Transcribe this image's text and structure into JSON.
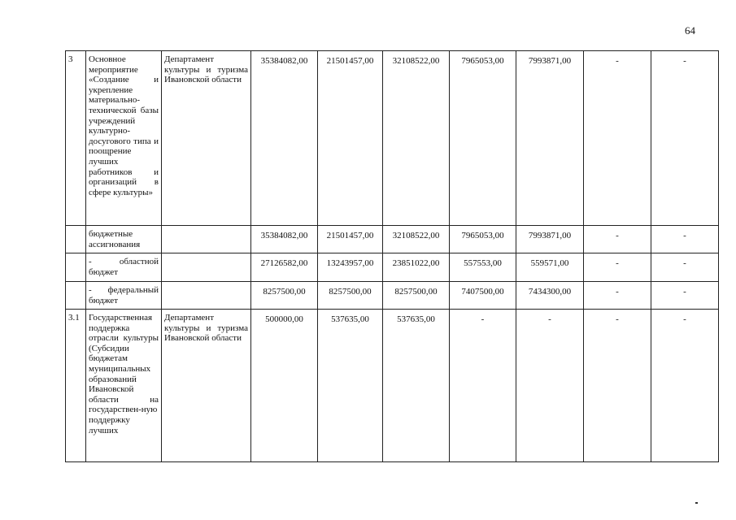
{
  "page_number": "64",
  "rows": [
    {
      "no": "3",
      "name": "Основное мероприятие «Создание и укрепление материально-технической базы учреждений культурно-досугового типа и поощрение лучших работников и организаций в сфере культуры»",
      "executor": "Департамент культуры и туризма Ивановской области",
      "values": [
        "35384082,00",
        "21501457,00",
        "32108522,00",
        "7965053,00",
        "7993871,00",
        "-",
        "-"
      ]
    },
    {
      "no": "",
      "name": "бюджетные ассигнования",
      "executor": "",
      "values": [
        "35384082,00",
        "21501457,00",
        "32108522,00",
        "7965053,00",
        "7993871,00",
        "-",
        "-"
      ]
    },
    {
      "no": "",
      "name": "- областной бюджет",
      "executor": "",
      "values": [
        "27126582,00",
        "13243957,00",
        "23851022,00",
        "557553,00",
        "559571,00",
        "-",
        "-"
      ]
    },
    {
      "no": "",
      "name": "- федеральный бюджет",
      "executor": "",
      "values": [
        "8257500,00",
        "8257500,00",
        "8257500,00",
        "7407500,00",
        "7434300,00",
        "-",
        "-"
      ]
    },
    {
      "no": "3.1",
      "name": "Государственная поддержка отрасли культуры (Субсидии бюджетам муниципальных образований Ивановской области на государствен-ную поддержку лучших",
      "executor": "Департамент культуры и туризма Ивановской области",
      "values": [
        "500000,00",
        "537635,00",
        "537635,00",
        "-",
        "-",
        "-",
        "-"
      ]
    }
  ]
}
